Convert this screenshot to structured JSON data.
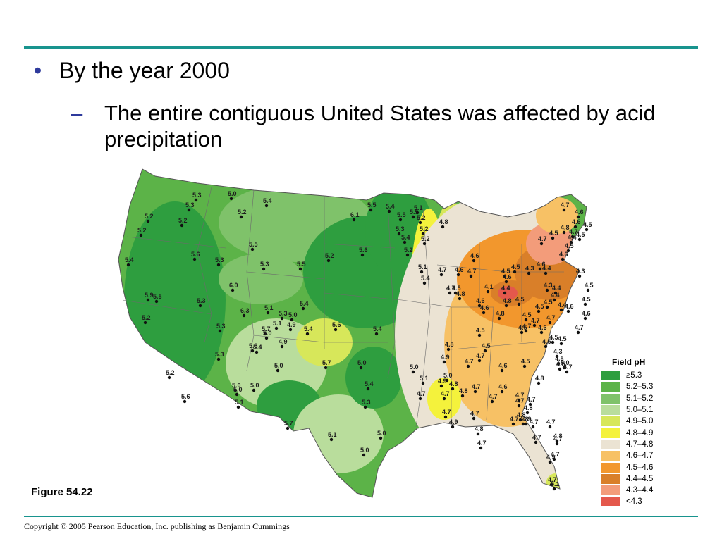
{
  "slide": {
    "bullet": "By the year 2000",
    "sub_bullet": "The entire contiguous United States was affected by acid precipitation",
    "bullet_marker": "•",
    "sub_marker": "–",
    "figure_label": "Figure 54.22",
    "copyright": "Copyright © 2005 Pearson Education, Inc. publishing as Benjamin Cummings"
  },
  "colors": {
    "rule": "#18948e",
    "bullet": "#2e3a9c"
  },
  "legend": {
    "title": "Field pH",
    "items": [
      {
        "label": "≥5.3",
        "color": "#2e9e3f"
      },
      {
        "label": "5.2–5.3",
        "color": "#5cb348"
      },
      {
        "label": "5.1–5.2",
        "color": "#7fc26a"
      },
      {
        "label": "5.0–5.1",
        "color": "#b9dd9c"
      },
      {
        "label": "4.9–5.0",
        "color": "#d7e75a"
      },
      {
        "label": "4.8–4.9",
        "color": "#f4f23c"
      },
      {
        "label": "4.7–4.8",
        "color": "#ebe3d3"
      },
      {
        "label": "4.6–4.7",
        "color": "#f7c165"
      },
      {
        "label": "4.5–4.6",
        "color": "#f2972d"
      },
      {
        "label": "4.4–4.5",
        "color": "#d97f29"
      },
      {
        "label": "4.3–4.4",
        "color": "#f39c7a"
      },
      {
        "label": "<4.3",
        "color": "#e4584c"
      }
    ]
  },
  "map": {
    "stations": [
      {
        "label": "5.3"
      },
      {
        "label": "5.0"
      },
      {
        "label": "5.4"
      },
      {
        "label": "5.3"
      },
      {
        "label": "5.2"
      },
      {
        "label": "5.2"
      },
      {
        "label": "5.2"
      },
      {
        "label": "5.2"
      },
      {
        "label": "5.6"
      },
      {
        "label": "5.3"
      },
      {
        "label": "5.4"
      },
      {
        "label": "5.5"
      },
      {
        "label": "5.3"
      },
      {
        "label": "5.5"
      },
      {
        "label": "5.2"
      },
      {
        "label": "6.0"
      },
      {
        "label": "5.9"
      },
      {
        "label": "5.5"
      },
      {
        "label": "5.2"
      },
      {
        "label": "5.3"
      },
      {
        "label": "6.3"
      },
      {
        "label": "5.1"
      },
      {
        "label": "5.3"
      },
      {
        "label": "5.0"
      },
      {
        "label": "5.4"
      },
      {
        "label": "5.3"
      },
      {
        "label": "5.7"
      },
      {
        "label": "5.0"
      },
      {
        "label": "5.1"
      },
      {
        "label": "4.9"
      },
      {
        "label": "5.4"
      },
      {
        "label": "4.9"
      },
      {
        "label": "5.6"
      },
      {
        "label": "5.4"
      },
      {
        "label": "5.3"
      },
      {
        "label": "5.4"
      },
      {
        "label": "5.3"
      },
      {
        "label": "5.0"
      },
      {
        "label": "5.2"
      },
      {
        "label": "5.6"
      },
      {
        "label": "6.1"
      },
      {
        "label": "5.5"
      },
      {
        "label": "5.6"
      },
      {
        "label": "5.0"
      },
      {
        "label": "5.0"
      },
      {
        "label": "5.7"
      },
      {
        "label": "5.0"
      },
      {
        "label": "5.0"
      },
      {
        "label": "5.1"
      },
      {
        "label": "5.4"
      },
      {
        "label": "5.3"
      },
      {
        "label": "5.4"
      },
      {
        "label": "5.7"
      },
      {
        "label": "5.1"
      },
      {
        "label": "5.0"
      },
      {
        "label": "5.0"
      },
      {
        "label": "5.5"
      },
      {
        "label": "5.3"
      },
      {
        "label": "5.4"
      },
      {
        "label": "5.2"
      },
      {
        "label": "5.5"
      },
      {
        "label": "5.2"
      },
      {
        "label": "5.2"
      },
      {
        "label": "5.1"
      },
      {
        "label": "5.2"
      },
      {
        "label": "4.8"
      },
      {
        "label": "5.1"
      },
      {
        "label": "5.0"
      },
      {
        "label": "4.9"
      },
      {
        "label": "4.8"
      },
      {
        "label": "4.9"
      },
      {
        "label": "4.7"
      },
      {
        "label": "4.7"
      },
      {
        "label": "5.1"
      },
      {
        "label": "4.7"
      },
      {
        "label": "5.4"
      },
      {
        "label": "4.7"
      },
      {
        "label": "4.6"
      },
      {
        "label": "4.5"
      },
      {
        "label": "4.6"
      },
      {
        "label": "4.6"
      },
      {
        "label": "4.8"
      },
      {
        "label": "4.6"
      },
      {
        "label": "4.7"
      },
      {
        "label": "4.8"
      },
      {
        "label": "4.1"
      },
      {
        "label": "4.4"
      },
      {
        "label": "4.5"
      },
      {
        "label": "4.3"
      },
      {
        "label": "4.7"
      },
      {
        "label": "4.4"
      },
      {
        "label": "4.3"
      },
      {
        "label": "4.4"
      },
      {
        "label": "4.5"
      },
      {
        "label": "4.4"
      },
      {
        "label": "4.4"
      },
      {
        "label": "4.5"
      },
      {
        "label": "4.4"
      },
      {
        "label": "4.3"
      },
      {
        "label": "4.5"
      },
      {
        "label": "4.7"
      },
      {
        "label": "4.6"
      },
      {
        "label": "4.5"
      },
      {
        "label": "4.5"
      },
      {
        "label": "4.6"
      },
      {
        "label": "4.5"
      },
      {
        "label": "4.6"
      },
      {
        "label": "4.5"
      },
      {
        "label": "4.3"
      },
      {
        "label": "4.5"
      },
      {
        "label": "4.5"
      },
      {
        "label": "4.5"
      },
      {
        "label": "4.5"
      },
      {
        "label": "4.7"
      },
      {
        "label": "4.6"
      },
      {
        "label": "4.5"
      },
      {
        "label": "4.5"
      },
      {
        "label": "4.5"
      },
      {
        "label": "4.6"
      },
      {
        "label": "4.7"
      },
      {
        "label": "4.6"
      },
      {
        "label": "4.5"
      },
      {
        "label": "4.8"
      },
      {
        "label": "4.6"
      },
      {
        "label": "4.6"
      },
      {
        "label": "4.7"
      },
      {
        "label": "4.5"
      },
      {
        "label": "4.8"
      },
      {
        "label": "4.7"
      },
      {
        "label": "4.7"
      },
      {
        "label": "4.5"
      },
      {
        "label": "4.5"
      },
      {
        "label": "4.6"
      },
      {
        "label": "4.5"
      },
      {
        "label": "4.8"
      },
      {
        "label": "4.7"
      },
      {
        "label": "4.7"
      },
      {
        "label": "4.5"
      },
      {
        "label": "5.0"
      },
      {
        "label": "4.7"
      },
      {
        "label": "4.7"
      },
      {
        "label": "4.7"
      },
      {
        "label": "4.8"
      },
      {
        "label": "4.7"
      },
      {
        "label": "4.6"
      },
      {
        "label": "4.7"
      },
      {
        "label": "4.8"
      },
      {
        "label": "4.7"
      },
      {
        "label": "4.8"
      },
      {
        "label": "4.7"
      },
      {
        "label": "4.7"
      },
      {
        "label": "4.9"
      },
      {
        "label": "4.8"
      },
      {
        "label": "4.8"
      },
      {
        "label": "4.9"
      },
      {
        "label": "4.7"
      },
      {
        "label": "4.8"
      },
      {
        "label": "4.7"
      },
      {
        "label": "4.7"
      },
      {
        "label": "4.7"
      },
      {
        "label": "4.7"
      },
      {
        "label": "4.7"
      },
      {
        "label": "4.9"
      },
      {
        "label": "5.0"
      },
      {
        "label": "4.8"
      },
      {
        "label": "5.1"
      },
      {
        "label": "4.7"
      },
      {
        "label": "4.7"
      }
    ]
  }
}
